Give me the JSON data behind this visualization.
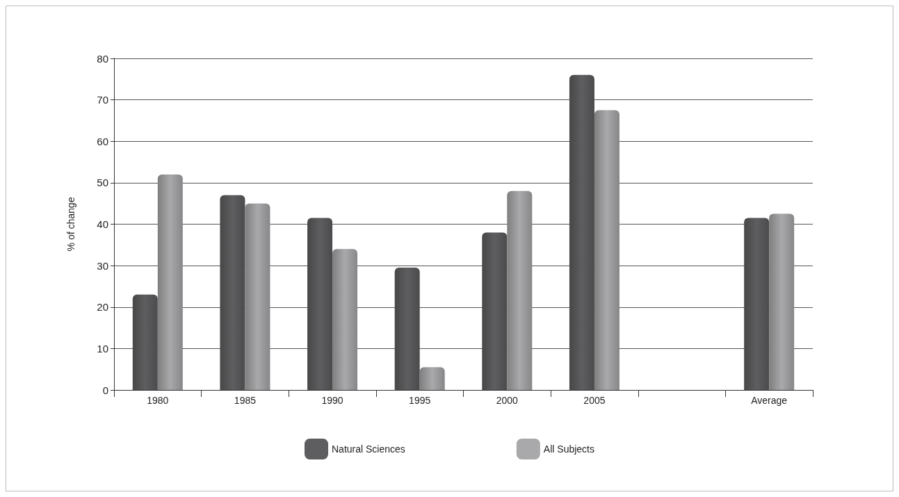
{
  "chart_data": {
    "type": "bar",
    "ylabel": "% of change",
    "categories": [
      "1980",
      "1985",
      "1990",
      "1995",
      "2000",
      "2005",
      null,
      "Average"
    ],
    "series": [
      {
        "name": "Natural Sciences",
        "color": "#5e5e60",
        "values": [
          23,
          47,
          41.5,
          29.5,
          38,
          76,
          null,
          41.5
        ]
      },
      {
        "name": "All Subjects",
        "color": "#a9a9ab",
        "values": [
          52,
          45,
          34,
          5.5,
          48,
          67.5,
          null,
          42.5
        ]
      }
    ],
    "ylim": [
      0,
      80
    ],
    "yticks": [
      0,
      10,
      20,
      30,
      40,
      50,
      60,
      70,
      80
    ],
    "grid": "y",
    "legend": "bottom"
  }
}
